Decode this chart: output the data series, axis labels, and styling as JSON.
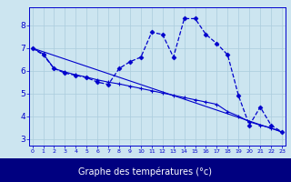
{
  "line1_x": [
    0,
    1,
    2,
    3,
    4,
    5,
    6,
    7,
    8,
    9,
    10,
    11,
    12,
    13,
    14,
    15,
    16,
    17,
    18,
    19,
    20,
    21,
    22,
    23
  ],
  "line1_y": [
    7.0,
    6.7,
    6.1,
    5.9,
    5.8,
    5.7,
    5.5,
    5.4,
    6.1,
    6.4,
    6.6,
    7.7,
    7.6,
    6.6,
    8.3,
    8.3,
    7.6,
    7.2,
    6.7,
    4.9,
    3.6,
    4.4,
    3.6,
    3.3
  ],
  "line2_x": [
    0,
    1,
    2,
    3,
    4,
    5,
    6,
    7,
    8,
    9,
    10,
    11,
    12,
    13,
    14,
    15,
    16,
    17,
    18,
    19,
    20,
    21,
    22,
    23
  ],
  "line2_y": [
    7.0,
    6.75,
    6.1,
    5.95,
    5.82,
    5.72,
    5.6,
    5.5,
    5.42,
    5.32,
    5.22,
    5.12,
    5.02,
    4.92,
    4.82,
    4.72,
    4.62,
    4.52,
    4.2,
    4.0,
    3.75,
    3.6,
    3.48,
    3.3
  ],
  "line3_x": [
    0,
    23
  ],
  "line3_y": [
    7.0,
    3.3
  ],
  "color": "#0000cc",
  "bg_color": "#cce5f0",
  "grid_color": "#aaccdd",
  "bottom_bar_color": "#000080",
  "xlabel": "Graphe des températures (°c)",
  "yticks": [
    3,
    4,
    5,
    6,
    7,
    8
  ],
  "xticks": [
    0,
    1,
    2,
    3,
    4,
    5,
    6,
    7,
    8,
    9,
    10,
    11,
    12,
    13,
    14,
    15,
    16,
    17,
    18,
    19,
    20,
    21,
    22,
    23
  ],
  "xlim": [
    -0.3,
    23.3
  ],
  "ylim": [
    2.7,
    8.8
  ]
}
